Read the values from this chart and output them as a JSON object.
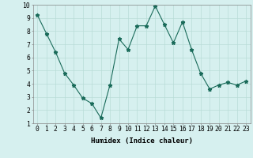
{
  "x": [
    0,
    1,
    2,
    3,
    4,
    5,
    6,
    7,
    8,
    9,
    10,
    11,
    12,
    13,
    14,
    15,
    16,
    17,
    18,
    19,
    20,
    21,
    22,
    23
  ],
  "y": [
    9.2,
    7.8,
    6.4,
    4.8,
    3.9,
    2.9,
    2.5,
    1.4,
    3.9,
    7.4,
    6.6,
    8.4,
    8.4,
    9.9,
    8.5,
    7.1,
    8.7,
    6.6,
    4.8,
    3.6,
    3.9,
    4.1,
    3.9,
    4.2
  ],
  "line_color": "#1a6b5a",
  "marker": "*",
  "bg_color": "#d6f0ef",
  "grid_color": "#b8dcd8",
  "xlabel": "Humidex (Indice chaleur)",
  "xlim": [
    -0.5,
    23.5
  ],
  "ylim": [
    1,
    10
  ],
  "xticks": [
    0,
    1,
    2,
    3,
    4,
    5,
    6,
    7,
    8,
    9,
    10,
    11,
    12,
    13,
    14,
    15,
    16,
    17,
    18,
    19,
    20,
    21,
    22,
    23
  ],
  "yticks": [
    1,
    2,
    3,
    4,
    5,
    6,
    7,
    8,
    9,
    10
  ],
  "xlabel_fontsize": 6.5,
  "tick_fontsize": 5.8
}
